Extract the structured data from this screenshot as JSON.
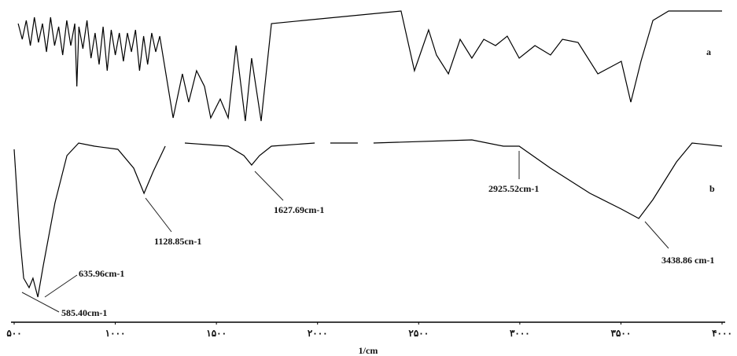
{
  "chart_data": {
    "type": "line",
    "x_label": "1/cm",
    "xlim": [
      500,
      4000
    ],
    "xticks": [
      {
        "value": 500,
        "label": "۵۰۰"
      },
      {
        "value": 1000,
        "label": "۱۰۰۰"
      },
      {
        "value": 1500,
        "label": "۱۵۰۰"
      },
      {
        "value": 2000,
        "label": "۲۰۰۰"
      },
      {
        "value": 2500,
        "label": "۲۵۰۰"
      },
      {
        "value": 3000,
        "label": "۳۰۰۰"
      },
      {
        "value": 3500,
        "label": "۳۵۰۰"
      },
      {
        "value": 4000,
        "label": "۴۰۰۰"
      }
    ],
    "ylim": [
      0,
      100
    ],
    "series": [
      {
        "name": "a",
        "color": "#000000",
        "x": [
          520,
          540,
          560,
          580,
          600,
          620,
          640,
          660,
          680,
          700,
          720,
          740,
          760,
          780,
          800,
          810,
          820,
          840,
          860,
          880,
          900,
          920,
          940,
          960,
          980,
          1000,
          1020,
          1040,
          1060,
          1080,
          1100,
          1120,
          1140,
          1160,
          1180,
          1200,
          1220,
          1286,
          1332,
          1363,
          1402,
          1441,
          1472,
          1519,
          1558,
          1597,
          1643,
          1674,
          1721,
          1772,
          2413,
          2479,
          2549,
          2588,
          2647,
          2705,
          2763,
          2822,
          2880,
          2938,
          2997,
          3075,
          3152,
          3211,
          3288,
          3386,
          3444,
          3502,
          3549,
          3599,
          3658,
          3736,
          4000
        ],
        "values": [
          95,
          90,
          96,
          88,
          97,
          89,
          95,
          86,
          97,
          88,
          94,
          85,
          96,
          88,
          95,
          75,
          94,
          87,
          96,
          84,
          92,
          82,
          94,
          80,
          93,
          85,
          92,
          83,
          92,
          86,
          93,
          80,
          91,
          82,
          92,
          86,
          91,
          65,
          79,
          70,
          80,
          75,
          65,
          71,
          65,
          88,
          64,
          84,
          64,
          95,
          99,
          80,
          93,
          85,
          79,
          90,
          84,
          90,
          88,
          91,
          84,
          88,
          85,
          90,
          89,
          79,
          81,
          83,
          70,
          83,
          96,
          99,
          99
        ]
      },
      {
        "name": "b",
        "color": "#000000",
        "x": [
          500,
          527,
          547,
          574,
          593,
          617,
          644,
          702,
          761,
          819,
          897,
          1013,
          1091,
          1142,
          1188,
          1247,
          null,
          1344,
          1558,
          1636,
          1674,
          1713,
          1772,
          1986,
          null,
          2063,
          2199,
          null,
          2277,
          2763,
          2919,
          2997,
          3152,
          3347,
          3502,
          3588,
          3658,
          3775,
          3852,
          4000
        ],
        "values": [
          55,
          28,
          14,
          11,
          14,
          8,
          18,
          38,
          53,
          57,
          56,
          55,
          49,
          41,
          48,
          56,
          null,
          57,
          56,
          53,
          50,
          53,
          56,
          57,
          null,
          57,
          57,
          null,
          57,
          58,
          56,
          56,
          49,
          41,
          36,
          33,
          39,
          51,
          57,
          56
        ]
      }
    ],
    "annotations": [
      "635.96cm-1",
      "585.40cm-1",
      "1128.85cn-1",
      "1627.69cm-1",
      "2925.52cm-1",
      "3438.86 cm-1"
    ]
  }
}
